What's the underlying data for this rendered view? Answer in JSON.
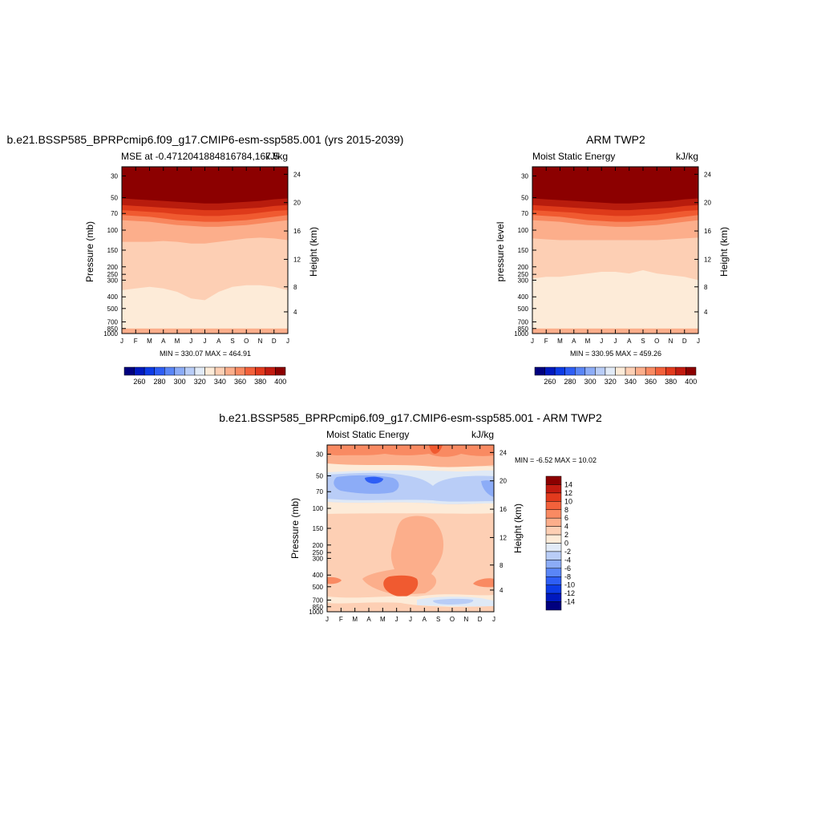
{
  "chart_data": [
    {
      "type": "heatmap",
      "title": "b.e21.BSSP585_BPRPcmip6.f09_g17.CMIP6-esm-ssp585.001 (yrs 2015-2039)",
      "subtitle_left": "MSE at -0.4712041884816784,167.5",
      "units": "kJ/kg",
      "ylabel": "Pressure (mb)",
      "ylabel_right": "Height (km)",
      "x_ticks": [
        "J",
        "F",
        "M",
        "A",
        "M",
        "J",
        "J",
        "A",
        "S",
        "O",
        "N",
        "D",
        "J"
      ],
      "y_ticks": [
        "30",
        "50",
        "70",
        "100",
        "150",
        "200",
        "250",
        "300",
        "400",
        "500",
        "700",
        "850",
        "1000"
      ],
      "y_ticks_right": [
        "24",
        "20",
        "16",
        "12",
        "8",
        "4"
      ],
      "minmax_text": "MIN = 330.07 MAX = 464.91",
      "layers_top_to_bottom": [
        {
          "range": ">= 400",
          "upper_boundary_pct": [
            0,
            0,
            0,
            0,
            0,
            0,
            0,
            0,
            0,
            0,
            0,
            0,
            0
          ]
        },
        {
          "range": "390-400",
          "upper_boundary_pct": [
            19,
            19.5,
            20,
            20.5,
            21,
            21.5,
            22,
            22,
            21.5,
            21,
            20.5,
            19.5,
            19
          ]
        },
        {
          "range": "380-390",
          "upper_boundary_pct": [
            23,
            23.5,
            24,
            24.5,
            25,
            25.5,
            26,
            26,
            25.5,
            25,
            24.5,
            23.5,
            23
          ]
        },
        {
          "range": "370-380",
          "upper_boundary_pct": [
            26,
            26.5,
            27,
            27.5,
            28.5,
            29,
            29.5,
            29.5,
            29,
            28.5,
            27.5,
            26.5,
            26
          ]
        },
        {
          "range": "360-370",
          "upper_boundary_pct": [
            29,
            29.5,
            30,
            31,
            32,
            32.5,
            33,
            33,
            32.5,
            32,
            31,
            30,
            29
          ]
        },
        {
          "range": "350-360",
          "upper_boundary_pct": [
            32,
            32.5,
            33,
            34,
            35,
            35.5,
            36,
            36,
            35.5,
            35,
            34,
            33,
            32
          ]
        },
        {
          "range": "340-350",
          "upper_boundary_pct": [
            45,
            45,
            45,
            44.5,
            45,
            46,
            46,
            45,
            44,
            43,
            42.5,
            43,
            44
          ]
        },
        {
          "range": "330-340",
          "upper_boundary_pct": [
            74,
            73,
            72,
            73,
            75,
            79,
            80,
            75,
            72,
            71,
            71,
            72,
            74
          ]
        },
        {
          "range": "340-350 (surface)",
          "upper_boundary_pct": [
            97,
            97,
            97,
            97,
            97,
            97,
            97,
            97,
            97,
            97,
            97,
            97,
            97
          ]
        }
      ]
    },
    {
      "type": "heatmap",
      "title": "ARM TWP2",
      "subtitle_left": "Moist Static Energy",
      "units": "kJ/kg",
      "ylabel": "pressure level",
      "ylabel_right": "Height (km)",
      "x_ticks": [
        "J",
        "F",
        "M",
        "A",
        "M",
        "J",
        "J",
        "A",
        "S",
        "O",
        "N",
        "D",
        "J"
      ],
      "y_ticks": [
        "30",
        "50",
        "70",
        "100",
        "150",
        "200",
        "250",
        "300",
        "400",
        "500",
        "700",
        "850",
        "1000"
      ],
      "y_ticks_right": [
        "24",
        "20",
        "16",
        "12",
        "8",
        "4"
      ],
      "minmax_text": "MIN = 330.95 MAX = 459.26",
      "layers_top_to_bottom": [
        {
          "range": ">= 400",
          "upper_boundary_pct": [
            0,
            0,
            0,
            0,
            0,
            0,
            0,
            0,
            0,
            0,
            0,
            0,
            0
          ]
        },
        {
          "range": "390-400",
          "upper_boundary_pct": [
            19,
            19.5,
            20,
            20.5,
            21,
            21.5,
            22,
            22,
            21.5,
            21,
            20.5,
            19.5,
            19
          ]
        },
        {
          "range": "380-390",
          "upper_boundary_pct": [
            23,
            23.5,
            24,
            24.5,
            25,
            25.5,
            26,
            26,
            25.5,
            25,
            24.5,
            23.5,
            23
          ]
        },
        {
          "range": "370-380",
          "upper_boundary_pct": [
            26,
            26.5,
            27,
            27.5,
            28.5,
            29,
            29.5,
            29.5,
            29,
            28.5,
            27.5,
            26.5,
            26
          ]
        },
        {
          "range": "360-370",
          "upper_boundary_pct": [
            29,
            29.5,
            30,
            31,
            32,
            32.5,
            33,
            33,
            32.5,
            32,
            31,
            30,
            29
          ]
        },
        {
          "range": "350-360",
          "upper_boundary_pct": [
            32,
            32.5,
            33,
            34,
            35,
            35.5,
            36,
            36,
            35.5,
            35,
            34,
            33,
            32
          ]
        },
        {
          "range": "340-350",
          "upper_boundary_pct": [
            43,
            43.5,
            44,
            44,
            44,
            44,
            44,
            44,
            44,
            44,
            43.5,
            43,
            42.5
          ]
        },
        {
          "range": "330-340",
          "upper_boundary_pct": [
            67,
            66,
            66,
            65,
            64,
            63,
            63,
            64,
            62,
            64,
            65,
            66,
            68
          ]
        },
        {
          "range": "340-350 (surface)",
          "upper_boundary_pct": [
            97,
            97,
            97,
            97,
            97,
            97,
            97,
            97,
            97,
            97,
            97,
            97,
            97
          ]
        }
      ]
    },
    {
      "type": "heatmap",
      "title": "b.e21.BSSP585_BPRPcmip6.f09_g17.CMIP6-esm-ssp585.001 - ARM TWP2",
      "subtitle_left": "Moist Static Energy",
      "units": "kJ/kg",
      "ylabel": "Pressure (mb)",
      "ylabel_right": "Height (km)",
      "x_ticks": [
        "J",
        "F",
        "M",
        "A",
        "M",
        "J",
        "J",
        "A",
        "S",
        "O",
        "N",
        "D",
        "J"
      ],
      "y_ticks": [
        "30",
        "50",
        "70",
        "100",
        "150",
        "200",
        "250",
        "300",
        "400",
        "500",
        "700",
        "850",
        "1000"
      ],
      "y_ticks_right": [
        "24",
        "20",
        "16",
        "12",
        "8",
        "4"
      ],
      "minmax_text": "MIN =  -6.52 MAX =  10.02"
    }
  ],
  "colorbar_main": {
    "labels": [
      "260",
      "280",
      "300",
      "320",
      "340",
      "360",
      "380",
      "400"
    ],
    "colors": [
      "#00007f",
      "#0019bf",
      "#0d3be6",
      "#2e5ef5",
      "#5a86f7",
      "#8cacf7",
      "#b9cdf7",
      "#e2ebf7",
      "#fdebd8",
      "#fdcfb4",
      "#fcae8b",
      "#f98a62",
      "#f3613b",
      "#e23a1d",
      "#c21b10",
      "#8c0000"
    ]
  },
  "colorbar_diff": {
    "labels": [
      "14",
      "12",
      "10",
      "8",
      "6",
      "4",
      "2",
      "0",
      "-2",
      "-4",
      "-6",
      "-8",
      "-10",
      "-12",
      "-14"
    ],
    "colors": [
      "#8c0000",
      "#c21b10",
      "#e23a1d",
      "#f3613b",
      "#f98a62",
      "#fcae8b",
      "#fdcfb4",
      "#fdebd8",
      "#e2ebf7",
      "#b9cdf7",
      "#8cacf7",
      "#5a86f7",
      "#2e5ef5",
      "#0d3be6",
      "#0019bf",
      "#00007f"
    ]
  },
  "colors": {
    "c400": "#8c0000",
    "c390": "#b81c0d",
    "c380": "#de3a1a",
    "c370": "#f05a30",
    "c360": "#f8875e",
    "c350": "#fcae8b",
    "c340": "#fdcfb4",
    "c330": "#fdebd8",
    "neg2": "#dfe9f6",
    "neg4": "#b9cdf7",
    "neg6": "#8cacf7"
  }
}
